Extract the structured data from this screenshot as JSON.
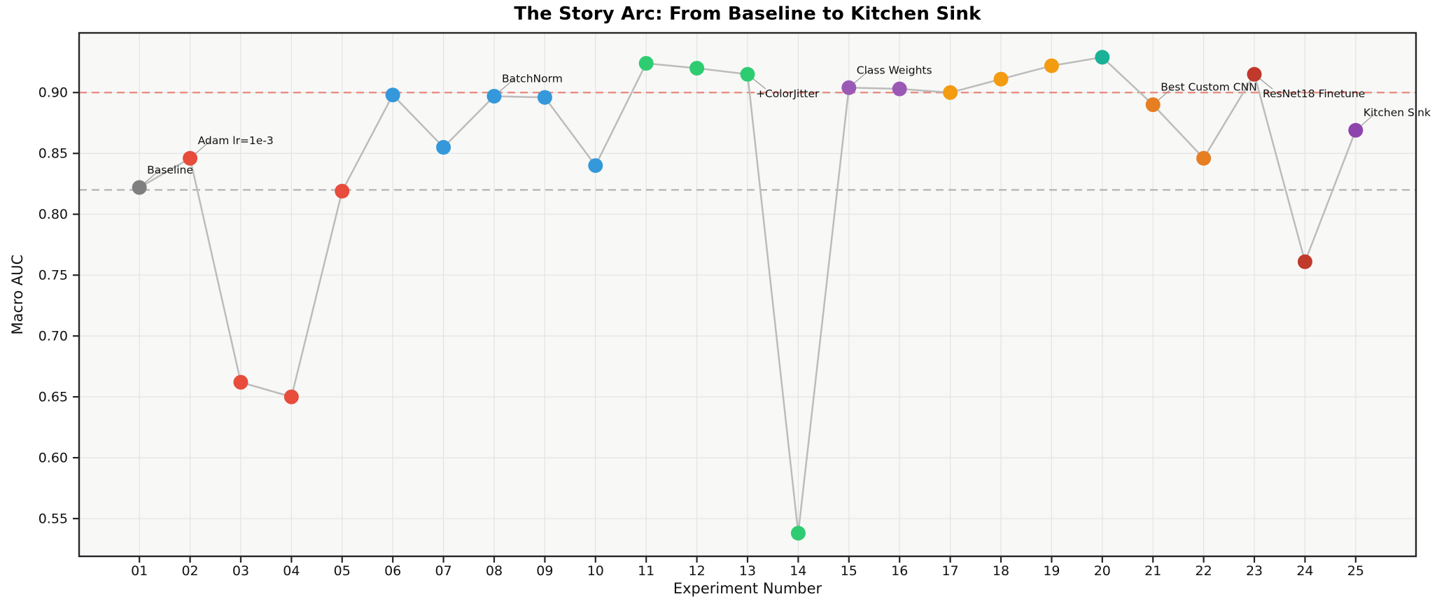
{
  "page": {
    "background": "#ffffff"
  },
  "chart_data": {
    "type": "line",
    "title": "The Story Arc: From Baseline to Kitchen Sink",
    "xlabel": "Experiment Number",
    "ylabel": "Macro AUC",
    "xlim": [
      -0.19,
      26.19
    ],
    "ylim": [
      0.519,
      0.949
    ],
    "grid": true,
    "plot_background": "#f8f8f7",
    "grid_color": "#e3e3e3",
    "spine_color": "#262626",
    "connector_line_color": "#bcbcbc",
    "leader_line_color": "#999999",
    "y_ticks": [
      {
        "value": 0.55,
        "label": "0.55"
      },
      {
        "value": 0.6,
        "label": "0.60"
      },
      {
        "value": 0.65,
        "label": "0.65"
      },
      {
        "value": 0.7,
        "label": "0.70"
      },
      {
        "value": 0.75,
        "label": "0.75"
      },
      {
        "value": 0.8,
        "label": "0.80"
      },
      {
        "value": 0.85,
        "label": "0.85"
      },
      {
        "value": 0.9,
        "label": "0.90"
      }
    ],
    "reference_lines": [
      {
        "name": "target-line",
        "value": 0.9,
        "color": "#e9867c",
        "style": "dashed"
      },
      {
        "name": "baseline-line",
        "value": 0.82,
        "color": "#b3b3b3",
        "style": "dashed"
      }
    ],
    "points": [
      {
        "experiment": "01",
        "auc": 0.822,
        "color": "#7f7f7f",
        "annotation": {
          "text": "Baseline",
          "side": "above"
        }
      },
      {
        "experiment": "02",
        "auc": 0.846,
        "color": "#e74c3c",
        "annotation": {
          "text": "Adam lr=1e-3",
          "side": "above"
        }
      },
      {
        "experiment": "03",
        "auc": 0.662,
        "color": "#e74c3c"
      },
      {
        "experiment": "04",
        "auc": 0.65,
        "color": "#e74c3c"
      },
      {
        "experiment": "05",
        "auc": 0.819,
        "color": "#e74c3c"
      },
      {
        "experiment": "06",
        "auc": 0.898,
        "color": "#3498db"
      },
      {
        "experiment": "07",
        "auc": 0.855,
        "color": "#3498db"
      },
      {
        "experiment": "08",
        "auc": 0.897,
        "color": "#3498db",
        "annotation": {
          "text": "BatchNorm",
          "side": "above"
        }
      },
      {
        "experiment": "09",
        "auc": 0.896,
        "color": "#3498db"
      },
      {
        "experiment": "10",
        "auc": 0.84,
        "color": "#3498db"
      },
      {
        "experiment": "11",
        "auc": 0.924,
        "color": "#2ecc71"
      },
      {
        "experiment": "12",
        "auc": 0.92,
        "color": "#2ecc71"
      },
      {
        "experiment": "13",
        "auc": 0.915,
        "color": "#2ecc71",
        "annotation": {
          "text": "+ColorJitter",
          "side": "below"
        }
      },
      {
        "experiment": "14",
        "auc": 0.538,
        "color": "#2ecc71"
      },
      {
        "experiment": "15",
        "auc": 0.904,
        "color": "#9b59b6",
        "annotation": {
          "text": "Class Weights",
          "side": "above"
        }
      },
      {
        "experiment": "16",
        "auc": 0.903,
        "color": "#9b59b6"
      },
      {
        "experiment": "17",
        "auc": 0.9,
        "color": "#f39c12"
      },
      {
        "experiment": "18",
        "auc": 0.911,
        "color": "#f39c12"
      },
      {
        "experiment": "19",
        "auc": 0.922,
        "color": "#f39c12"
      },
      {
        "experiment": "20",
        "auc": 0.929,
        "color": "#19b296"
      },
      {
        "experiment": "21",
        "auc": 0.89,
        "color": "#e67e22",
        "annotation": {
          "text": "Best Custom CNN",
          "side": "above"
        }
      },
      {
        "experiment": "22",
        "auc": 0.846,
        "color": "#e67e22"
      },
      {
        "experiment": "23",
        "auc": 0.915,
        "color": "#c0392b",
        "annotation": {
          "text": "ResNet18 Finetune",
          "side": "below"
        }
      },
      {
        "experiment": "24",
        "auc": 0.761,
        "color": "#c0392b"
      },
      {
        "experiment": "25",
        "auc": 0.869,
        "color": "#8e44ad",
        "annotation": {
          "text": "Kitchen Sink",
          "side": "above"
        }
      }
    ]
  }
}
